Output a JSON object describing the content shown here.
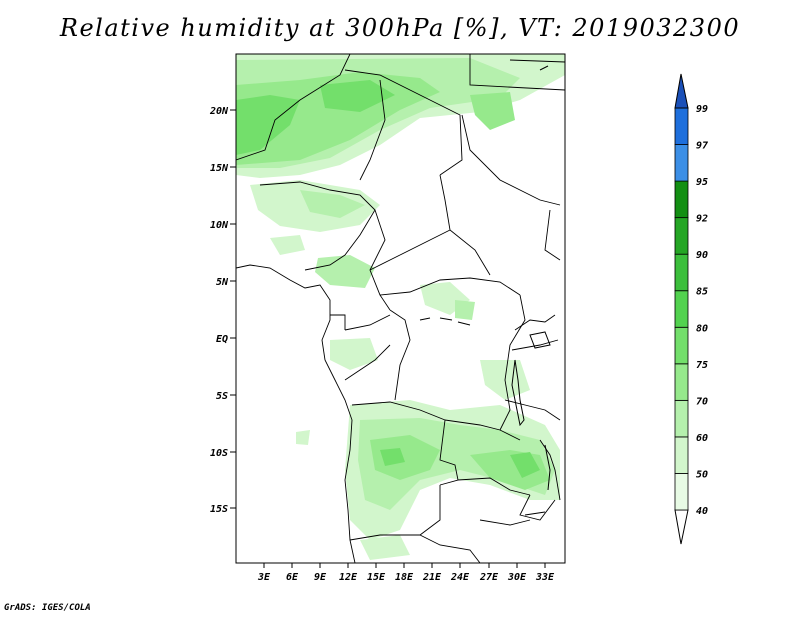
{
  "title": "Relative humidity at 300hPa [%], VT: 2019032300",
  "credit": "GrADS: IGES/COLA",
  "map": {
    "lat_labels": [
      "20N",
      "15N",
      "10N",
      "5N",
      "EQ",
      "5S",
      "10S",
      "15S"
    ],
    "lon_labels": [
      "3E",
      "6E",
      "9E",
      "12E",
      "15E",
      "18E",
      "21E",
      "24E",
      "27E",
      "30E",
      "33E"
    ]
  },
  "colorbar": {
    "levels": [
      "40",
      "50",
      "60",
      "70",
      "75",
      "80",
      "85",
      "90",
      "92",
      "95",
      "97",
      "99"
    ],
    "colors": [
      "#ffffff",
      "#e8fbe5",
      "#d2f6cc",
      "#b5f0ad",
      "#96e98c",
      "#73df6b",
      "#52d24f",
      "#3cbf3c",
      "#25a625",
      "#138f13",
      "#3c8fe6",
      "#1e6fdc",
      "#1a50b8"
    ]
  }
}
